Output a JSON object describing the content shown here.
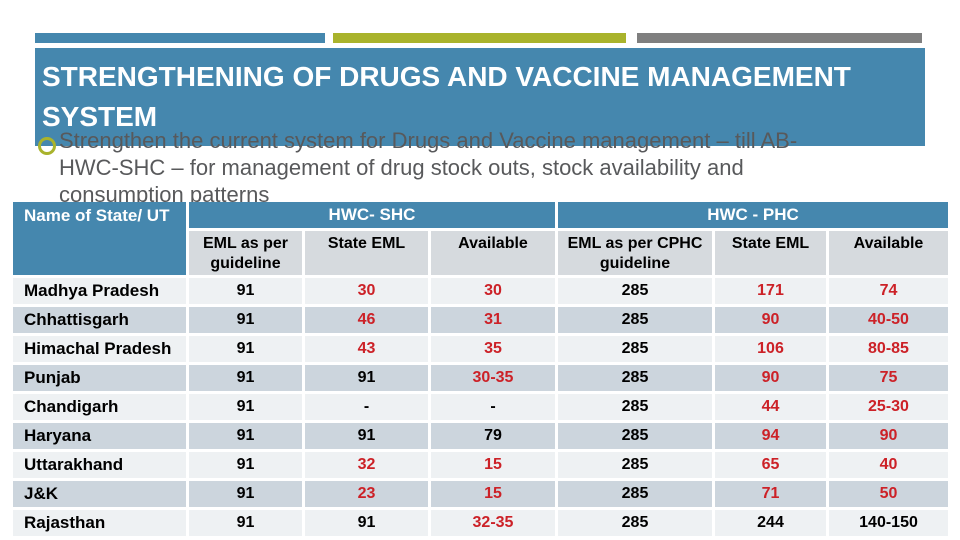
{
  "slide": {
    "title_line1": "STRENGTHENING OF DRUGS AND VACCINE MANAGEMENT",
    "title_line2": "SYSTEM",
    "bullet_lines": [
      "Strengthen the current system for Drugs and Vaccine management – till AB-",
      "HWC-SHC – for management of drug stock outs, stock availability and",
      "consumption patterns"
    ]
  },
  "colors": {
    "accent_blue": "#4587ae",
    "accent_olive": "#a9b32c",
    "accent_gray": "#7f7f7f",
    "header_cell_gray": "#d6dade",
    "row_light": "#eef1f3",
    "row_dark": "#ccd5dd",
    "highlight_red": "#cc2127",
    "body_text_gray": "#58595b"
  },
  "table": {
    "corner_header": "Name of State/ UT",
    "group_headers": [
      "HWC- SHC",
      "HWC - PHC"
    ],
    "sub_headers": [
      "EML as per guideline",
      "State EML",
      "Available",
      "EML as per CPHC guideline",
      "State EML",
      "Available"
    ],
    "rows": [
      {
        "name": "Madhya Pradesh",
        "cells": [
          {
            "v": "91",
            "c": "black"
          },
          {
            "v": "30",
            "c": "red"
          },
          {
            "v": "30",
            "c": "red"
          },
          {
            "v": "285",
            "c": "black"
          },
          {
            "v": "171",
            "c": "red"
          },
          {
            "v": "74",
            "c": "red"
          }
        ]
      },
      {
        "name": "Chhattisgarh",
        "cells": [
          {
            "v": "91",
            "c": "black"
          },
          {
            "v": "46",
            "c": "red"
          },
          {
            "v": "31",
            "c": "red"
          },
          {
            "v": "285",
            "c": "black"
          },
          {
            "v": "90",
            "c": "red"
          },
          {
            "v": "40-50",
            "c": "red"
          }
        ]
      },
      {
        "name": "Himachal Pradesh",
        "cells": [
          {
            "v": "91",
            "c": "black"
          },
          {
            "v": "43",
            "c": "red"
          },
          {
            "v": "35",
            "c": "red"
          },
          {
            "v": "285",
            "c": "black"
          },
          {
            "v": "106",
            "c": "red"
          },
          {
            "v": "80-85",
            "c": "red"
          }
        ]
      },
      {
        "name": "Punjab",
        "cells": [
          {
            "v": "91",
            "c": "black"
          },
          {
            "v": "91",
            "c": "black"
          },
          {
            "v": "30-35",
            "c": "red"
          },
          {
            "v": "285",
            "c": "black"
          },
          {
            "v": "90",
            "c": "red"
          },
          {
            "v": "75",
            "c": "red"
          }
        ]
      },
      {
        "name": "Chandigarh",
        "cells": [
          {
            "v": "91",
            "c": "black"
          },
          {
            "v": "-",
            "c": "black"
          },
          {
            "v": "-",
            "c": "black"
          },
          {
            "v": "285",
            "c": "black"
          },
          {
            "v": "44",
            "c": "red"
          },
          {
            "v": "25-30",
            "c": "red"
          }
        ]
      },
      {
        "name": "Haryana",
        "cells": [
          {
            "v": "91",
            "c": "black"
          },
          {
            "v": "91",
            "c": "black"
          },
          {
            "v": "79",
            "c": "black"
          },
          {
            "v": "285",
            "c": "black"
          },
          {
            "v": "94",
            "c": "red"
          },
          {
            "v": "90",
            "c": "red"
          }
        ]
      },
      {
        "name": "Uttarakhand",
        "cells": [
          {
            "v": "91",
            "c": "black"
          },
          {
            "v": "32",
            "c": "red"
          },
          {
            "v": "15",
            "c": "red"
          },
          {
            "v": "285",
            "c": "black"
          },
          {
            "v": "65",
            "c": "red"
          },
          {
            "v": "40",
            "c": "red"
          }
        ]
      },
      {
        "name": "J&K",
        "cells": [
          {
            "v": "91",
            "c": "black"
          },
          {
            "v": "23",
            "c": "red"
          },
          {
            "v": "15",
            "c": "red"
          },
          {
            "v": "285",
            "c": "black"
          },
          {
            "v": "71",
            "c": "red"
          },
          {
            "v": "50",
            "c": "red"
          }
        ]
      },
      {
        "name": "Rajasthan",
        "cells": [
          {
            "v": "91",
            "c": "black"
          },
          {
            "v": "91",
            "c": "black"
          },
          {
            "v": "32-35",
            "c": "red"
          },
          {
            "v": "285",
            "c": "black"
          },
          {
            "v": "244",
            "c": "black"
          },
          {
            "v": "140-150",
            "c": "black"
          }
        ]
      }
    ]
  }
}
